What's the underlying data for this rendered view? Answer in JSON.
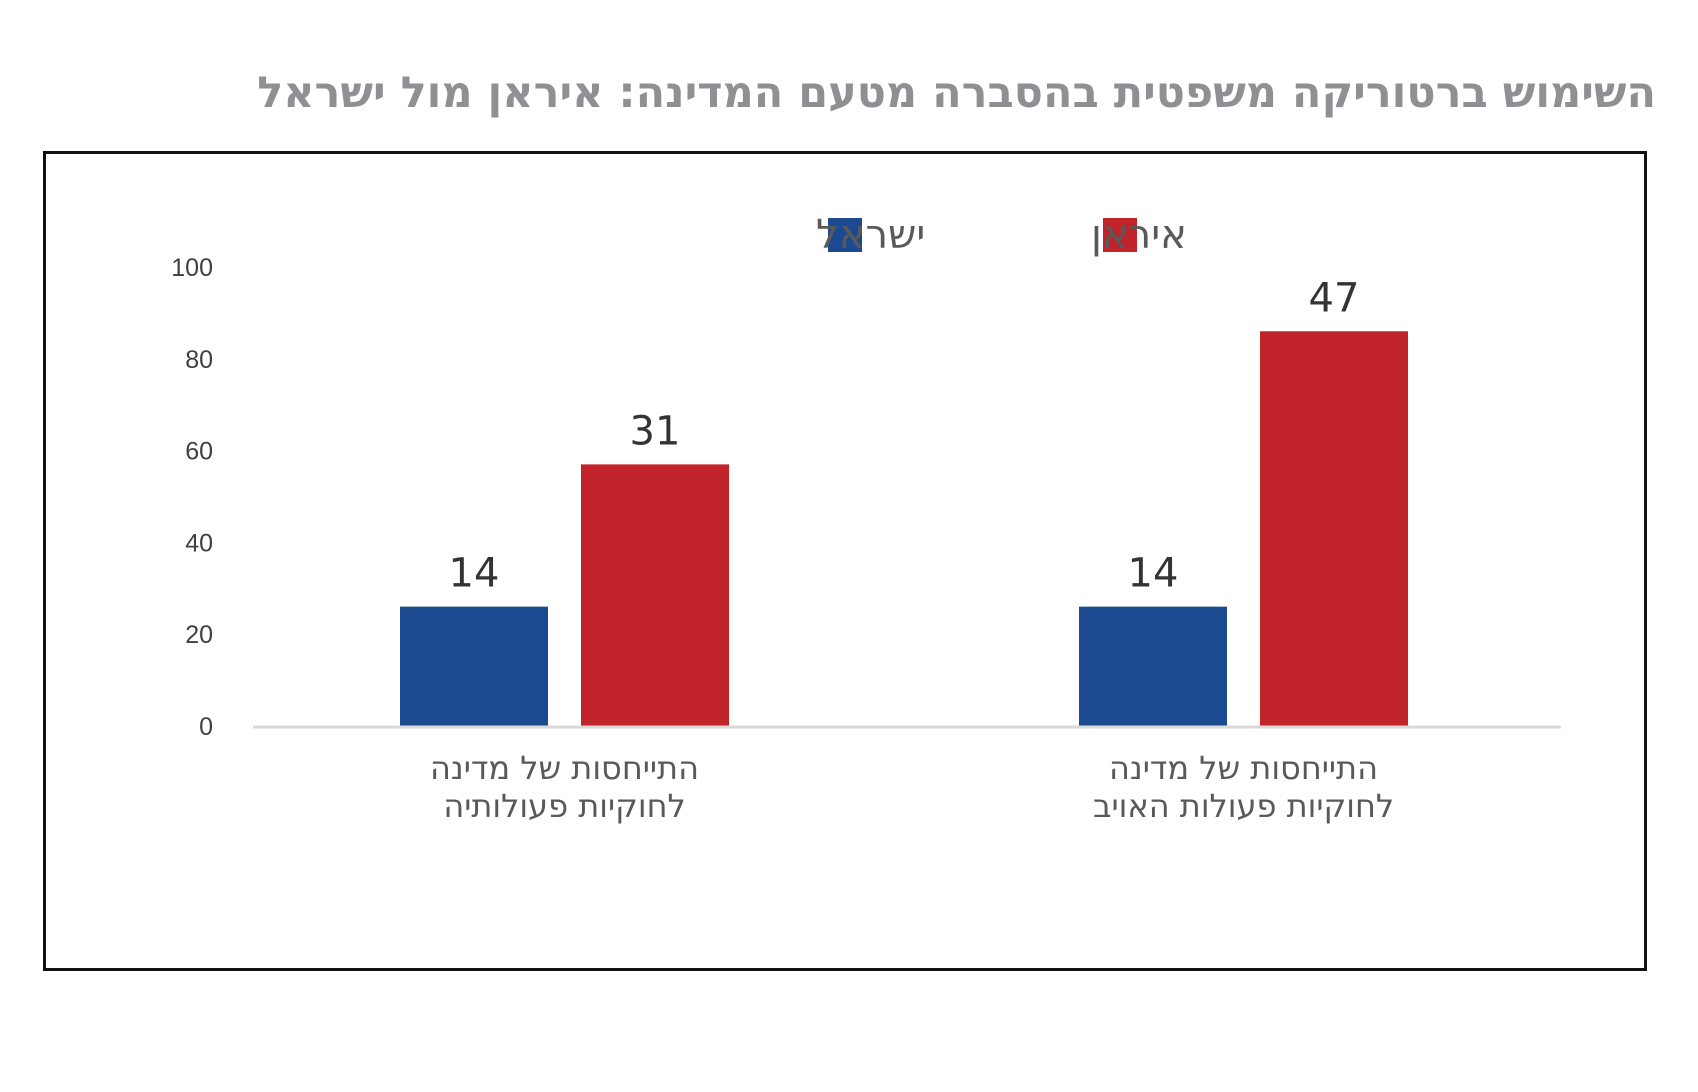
{
  "chart_data": {
    "type": "bar",
    "title": "השימוש ברטוריקה משפטית בהסברה מטעם המדינה: איראן מול ישראל",
    "categories": [
      [
        "התייחסות של מדינה",
        "לחוקיות פעולותיה"
      ],
      [
        "התייחסות של מדינה",
        "לחוקיות פעולות האויב"
      ]
    ],
    "series": [
      {
        "name": "ישראל",
        "color": "#1b4a91",
        "values": [
          14,
          14
        ],
        "bar_heights": [
          26,
          26
        ]
      },
      {
        "name": "איראן",
        "color": "#c0232a",
        "values": [
          31,
          47
        ],
        "bar_heights": [
          57,
          86
        ]
      }
    ],
    "yticks": [
      0,
      20,
      40,
      60,
      80,
      100
    ],
    "ylim": [
      0,
      100
    ],
    "xlabel": "",
    "ylabel": "",
    "legend_position": "top-center",
    "grid": false
  },
  "colors": {
    "title": "#8f9094",
    "axis_line": "#d9d9d9",
    "frame": "#111111"
  }
}
